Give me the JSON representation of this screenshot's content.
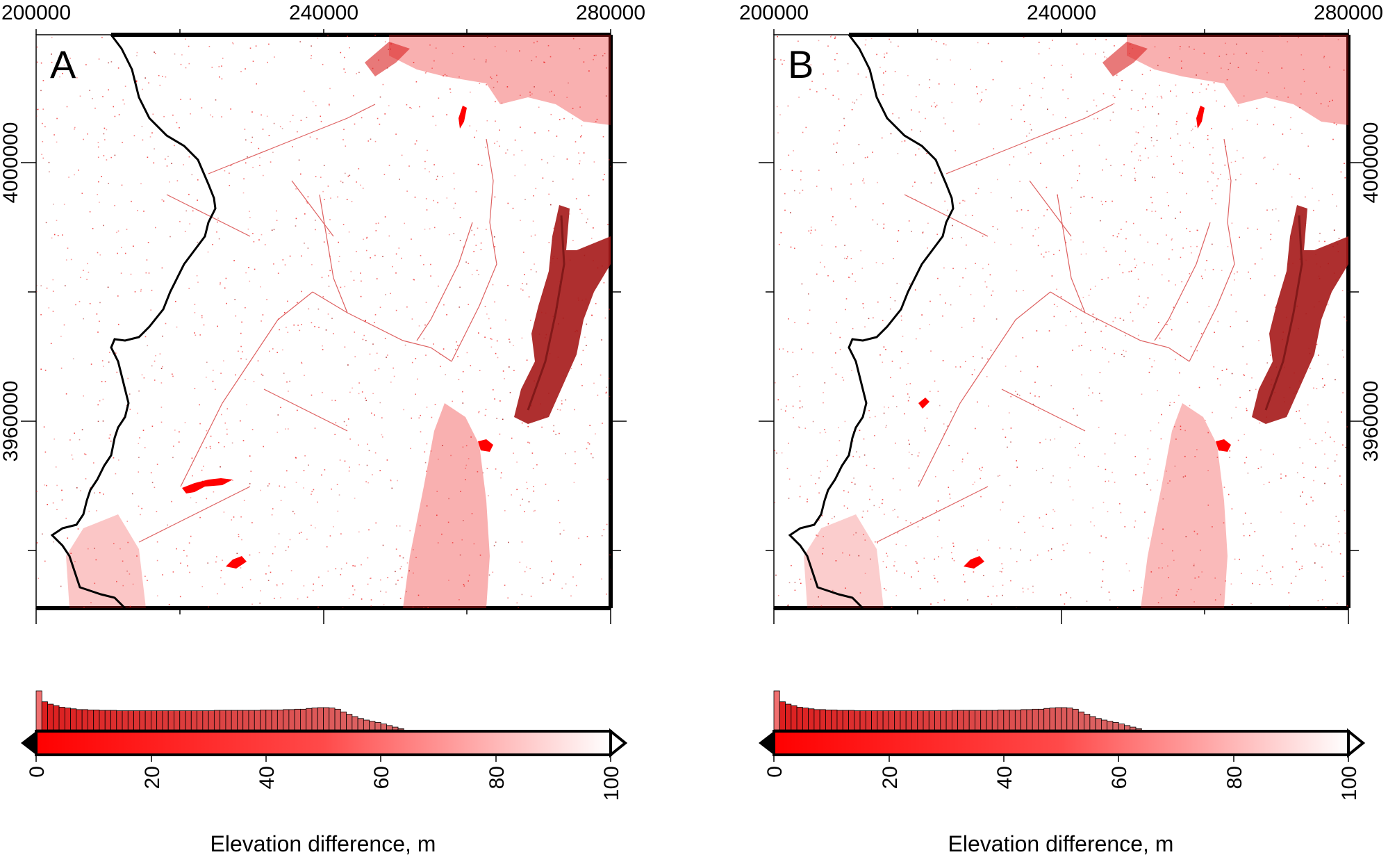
{
  "panels": [
    {
      "label": "A",
      "x_ticks": [
        "200000",
        "240000",
        "280000"
      ],
      "y_ticks": [
        "4000000",
        "3960000"
      ],
      "colorbar": {
        "ticks": [
          "0",
          "20",
          "40",
          "60",
          "80",
          "100"
        ],
        "title": "Elevation difference, m"
      }
    },
    {
      "label": "B",
      "x_ticks": [
        "200000",
        "240000",
        "280000"
      ],
      "y_ticks": [
        "4000000",
        "3960000"
      ],
      "colorbar": {
        "ticks": [
          "0",
          "20",
          "40",
          "60",
          "80",
          "100"
        ],
        "title": "Elevation difference, m"
      }
    }
  ],
  "colors": {
    "diff_red": "#ee1c1c",
    "dark_red": "#a51818",
    "coastline": "#000000",
    "cbar_start": "#ff0000",
    "cbar_end": "#ffffff"
  },
  "histograms": [
    [
      1.0,
      0.72,
      0.66,
      0.62,
      0.58,
      0.56,
      0.54,
      0.52,
      0.52,
      0.51,
      0.51,
      0.5,
      0.5,
      0.5,
      0.49,
      0.49,
      0.49,
      0.49,
      0.49,
      0.49,
      0.49,
      0.49,
      0.49,
      0.49,
      0.49,
      0.49,
      0.49,
      0.49,
      0.49,
      0.49,
      0.49,
      0.5,
      0.5,
      0.5,
      0.5,
      0.5,
      0.5,
      0.5,
      0.5,
      0.51,
      0.51,
      0.51,
      0.51,
      0.52,
      0.52,
      0.53,
      0.53,
      0.55,
      0.56,
      0.57,
      0.57,
      0.56,
      0.53,
      0.46,
      0.4,
      0.34,
      0.29,
      0.25,
      0.22,
      0.19,
      0.15,
      0.11,
      0.07,
      0.03
    ],
    [
      1.0,
      0.72,
      0.66,
      0.62,
      0.58,
      0.56,
      0.54,
      0.52,
      0.52,
      0.51,
      0.51,
      0.5,
      0.5,
      0.5,
      0.49,
      0.49,
      0.49,
      0.49,
      0.49,
      0.49,
      0.49,
      0.49,
      0.49,
      0.49,
      0.49,
      0.49,
      0.49,
      0.49,
      0.49,
      0.49,
      0.49,
      0.5,
      0.5,
      0.5,
      0.5,
      0.5,
      0.5,
      0.5,
      0.5,
      0.51,
      0.51,
      0.51,
      0.51,
      0.52,
      0.52,
      0.53,
      0.53,
      0.55,
      0.56,
      0.57,
      0.57,
      0.56,
      0.53,
      0.46,
      0.4,
      0.34,
      0.29,
      0.25,
      0.22,
      0.19,
      0.15,
      0.11,
      0.07,
      0.03
    ]
  ]
}
